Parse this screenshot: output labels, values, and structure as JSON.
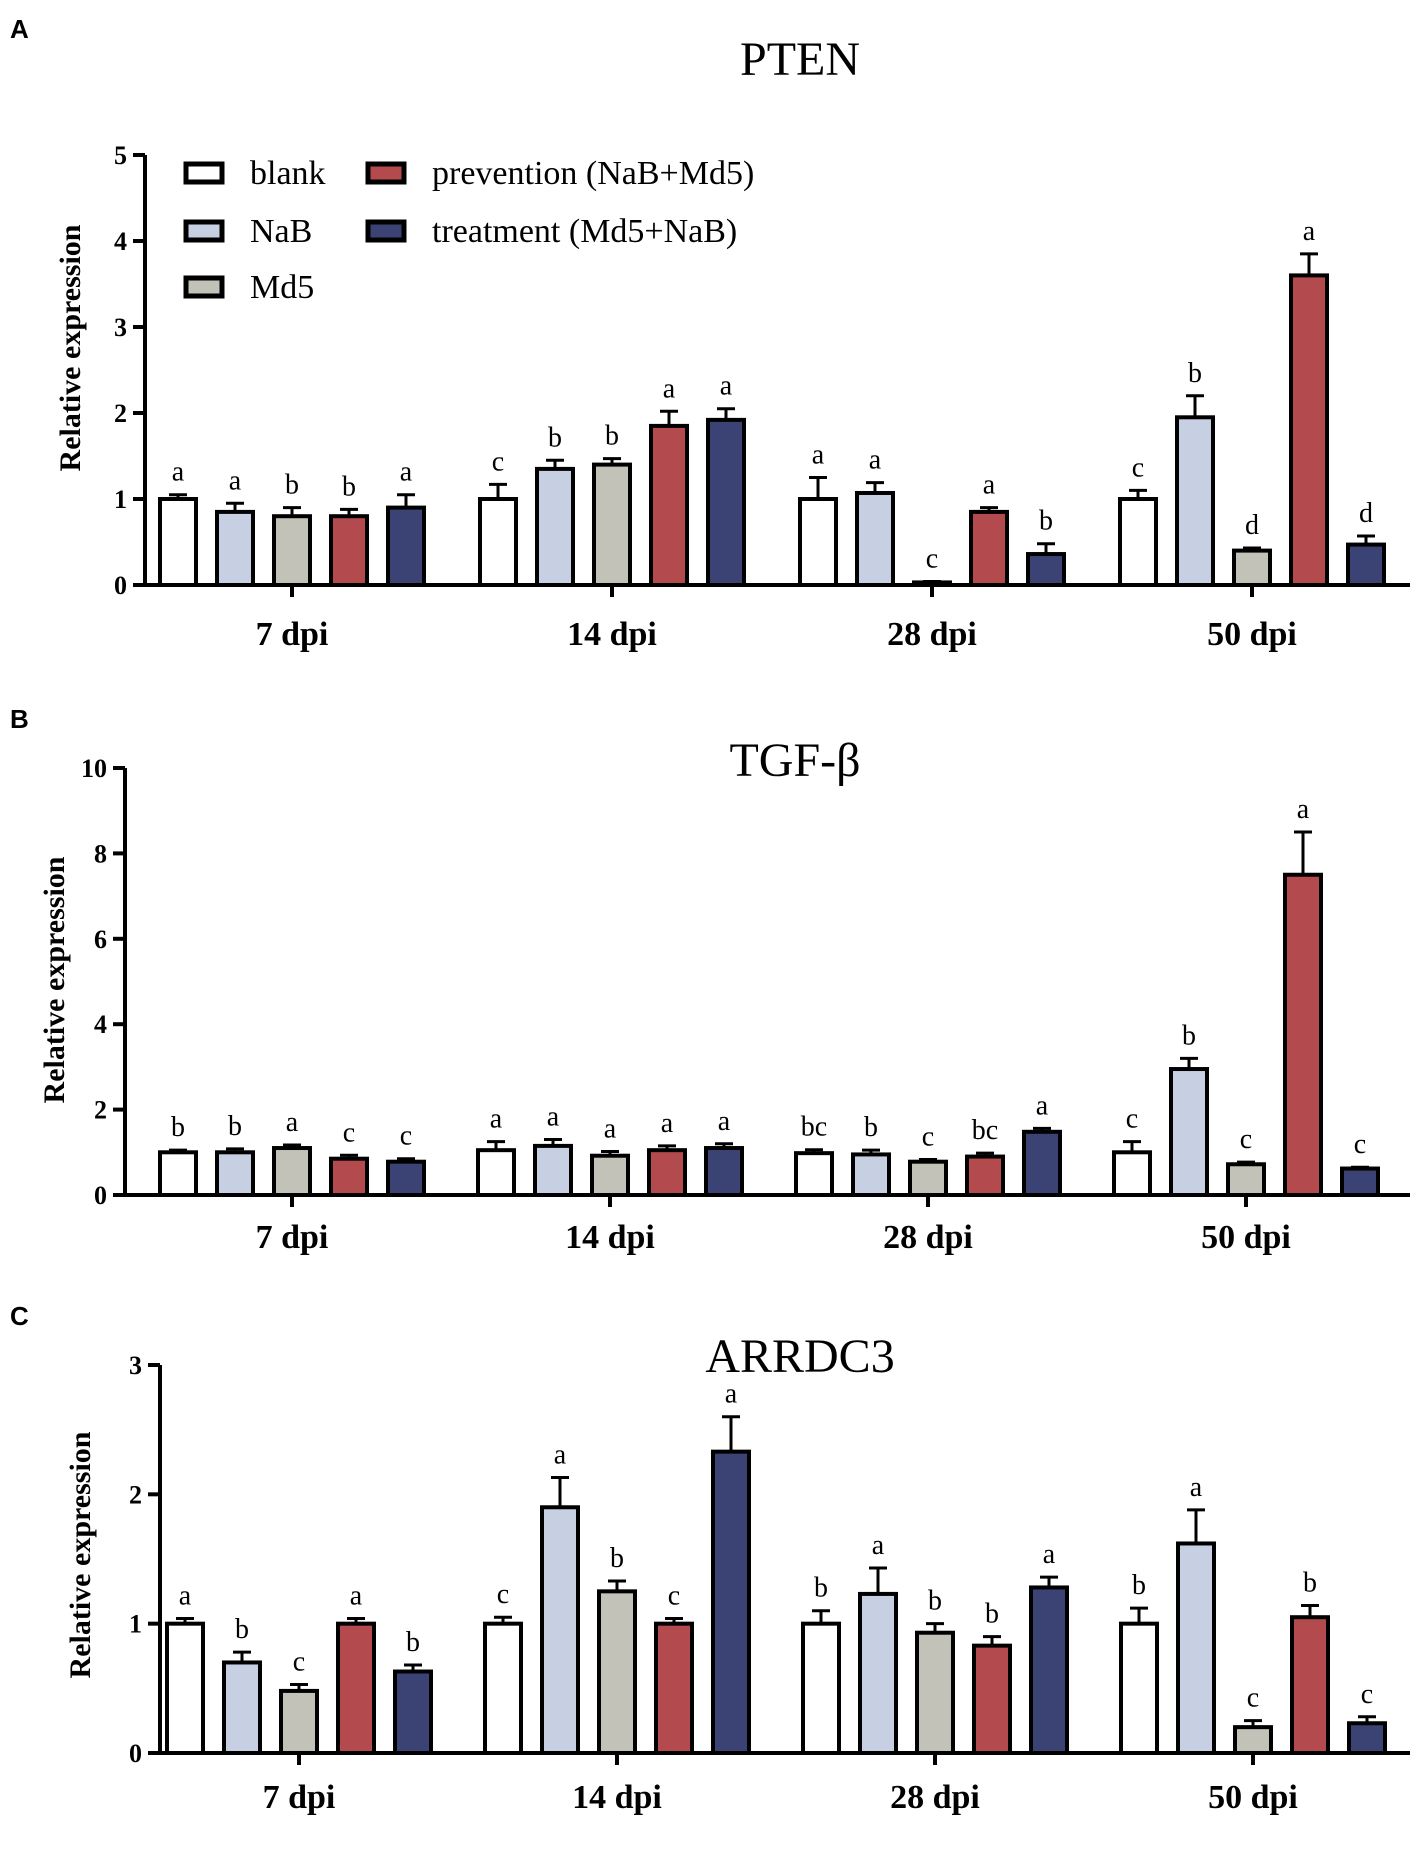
{
  "figure": {
    "panel_labels": [
      "A",
      "B",
      "C"
    ]
  },
  "legend": {
    "items": [
      {
        "label": "blank",
        "color": "#ffffff"
      },
      {
        "label": "NaB",
        "color": "#c7d0e3"
      },
      {
        "label": "Md5",
        "color": "#c2c2b8"
      },
      {
        "label": "prevention (NaB+Md5)",
        "color": "#b34a4d"
      },
      {
        "label": "treatment (Md5+NaB)",
        "color": "#3a4374"
      }
    ]
  },
  "chart_data": [
    {
      "type": "bar",
      "panel": "A",
      "title": "PTEN",
      "xlabel": "",
      "ylabel": "Relative expression",
      "ylim": [
        0,
        5
      ],
      "yticks": [
        0,
        1,
        2,
        3,
        4,
        5
      ],
      "categories": [
        "7 dpi",
        "14 dpi",
        "28 dpi",
        "50 dpi"
      ],
      "series": [
        {
          "name": "blank",
          "values": [
            1.0,
            1.0,
            1.0,
            1.0
          ],
          "errors": [
            0.05,
            0.17,
            0.25,
            0.1
          ],
          "letters": [
            "a",
            "c",
            "a",
            "c"
          ]
        },
        {
          "name": "NaB",
          "values": [
            0.85,
            1.35,
            1.07,
            1.95
          ],
          "errors": [
            0.1,
            0.1,
            0.12,
            0.25
          ],
          "letters": [
            "a",
            "b",
            "a",
            "b"
          ]
        },
        {
          "name": "Md5",
          "values": [
            0.8,
            1.4,
            0.03,
            0.4
          ],
          "errors": [
            0.1,
            0.07,
            0.01,
            0.03
          ],
          "letters": [
            "b",
            "b",
            "c",
            "d"
          ]
        },
        {
          "name": "prevention (NaB+Md5)",
          "values": [
            0.8,
            1.85,
            0.85,
            3.6
          ],
          "errors": [
            0.08,
            0.17,
            0.05,
            0.25
          ],
          "letters": [
            "b",
            "a",
            "a",
            "a"
          ]
        },
        {
          "name": "treatment (Md5+NaB)",
          "values": [
            0.9,
            1.92,
            0.36,
            0.47
          ],
          "errors": [
            0.15,
            0.13,
            0.12,
            0.1
          ],
          "letters": [
            "a",
            "a",
            "b",
            "d"
          ]
        }
      ]
    },
    {
      "type": "bar",
      "panel": "B",
      "title": "TGF-β",
      "xlabel": "",
      "ylabel": "Relative expression",
      "ylim": [
        0,
        10
      ],
      "yticks": [
        0,
        2,
        4,
        6,
        8,
        10
      ],
      "categories": [
        "7 dpi",
        "14 dpi",
        "28 dpi",
        "50 dpi"
      ],
      "series": [
        {
          "name": "blank",
          "values": [
            1.0,
            1.05,
            0.98,
            1.0
          ],
          "errors": [
            0.05,
            0.2,
            0.08,
            0.25
          ],
          "letters": [
            "b",
            "a",
            "bc",
            "c"
          ]
        },
        {
          "name": "NaB",
          "values": [
            1.0,
            1.15,
            0.95,
            2.95
          ],
          "errors": [
            0.08,
            0.15,
            0.1,
            0.25
          ],
          "letters": [
            "b",
            "a",
            "b",
            "b"
          ]
        },
        {
          "name": "Md5",
          "values": [
            1.1,
            0.92,
            0.78,
            0.72
          ],
          "errors": [
            0.07,
            0.1,
            0.05,
            0.05
          ],
          "letters": [
            "a",
            "a",
            "c",
            "c"
          ]
        },
        {
          "name": "prevention (NaB+Md5)",
          "values": [
            0.85,
            1.05,
            0.9,
            7.5
          ],
          "errors": [
            0.08,
            0.1,
            0.08,
            1.0
          ],
          "letters": [
            "c",
            "a",
            "bc",
            "a"
          ]
        },
        {
          "name": "treatment (Md5+NaB)",
          "values": [
            0.78,
            1.1,
            1.48,
            0.62
          ],
          "errors": [
            0.07,
            0.1,
            0.08,
            0.03
          ],
          "letters": [
            "c",
            "a",
            "a",
            "c"
          ]
        }
      ]
    },
    {
      "type": "bar",
      "panel": "C",
      "title": "ARRDC3",
      "xlabel": "",
      "ylabel": "Relative expression",
      "ylim": [
        0,
        3
      ],
      "yticks": [
        0,
        1,
        2,
        3
      ],
      "categories": [
        "7 dpi",
        "14 dpi",
        "28 dpi",
        "50 dpi"
      ],
      "series": [
        {
          "name": "blank",
          "values": [
            1.0,
            1.0,
            1.0,
            1.0
          ],
          "errors": [
            0.04,
            0.05,
            0.1,
            0.12
          ],
          "letters": [
            "a",
            "c",
            "b",
            "b"
          ]
        },
        {
          "name": "NaB",
          "values": [
            0.7,
            1.9,
            1.23,
            1.62
          ],
          "errors": [
            0.08,
            0.23,
            0.2,
            0.26
          ],
          "letters": [
            "b",
            "a",
            "a",
            "a"
          ]
        },
        {
          "name": "Md5",
          "values": [
            0.48,
            1.25,
            0.93,
            0.2
          ],
          "errors": [
            0.05,
            0.08,
            0.07,
            0.05
          ],
          "letters": [
            "c",
            "b",
            "b",
            "c"
          ]
        },
        {
          "name": "prevention (NaB+Md5)",
          "values": [
            1.0,
            1.0,
            0.83,
            1.05
          ],
          "errors": [
            0.04,
            0.04,
            0.07,
            0.09
          ],
          "letters": [
            "a",
            "c",
            "b",
            "b"
          ]
        },
        {
          "name": "treatment (Md5+NaB)",
          "values": [
            0.63,
            2.33,
            1.28,
            0.23
          ],
          "errors": [
            0.05,
            0.27,
            0.08,
            0.05
          ],
          "letters": [
            "b",
            "a",
            "a",
            "c"
          ]
        }
      ]
    }
  ]
}
